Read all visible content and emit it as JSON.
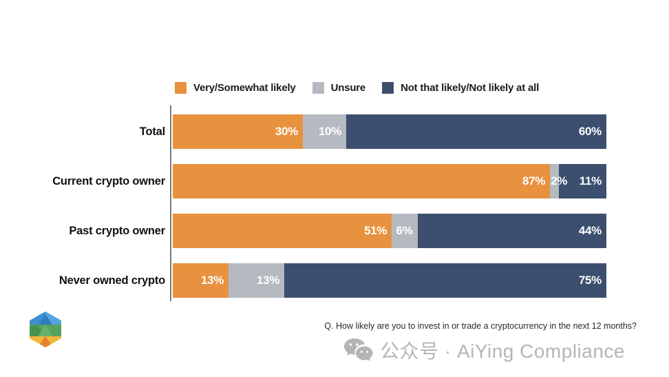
{
  "chart_data": {
    "type": "bar",
    "variant": "horizontal-stacked",
    "categories": [
      "Total",
      "Current crypto owner",
      "Past crypto owner",
      "Never owned crypto"
    ],
    "series": [
      {
        "name": "Very/Somewhat likely",
        "color": "#E8913E",
        "values": [
          30,
          87,
          51,
          13
        ]
      },
      {
        "name": "Unsure",
        "color": "#B5B9C0",
        "values": [
          10,
          2,
          6,
          13
        ]
      },
      {
        "name": "Not that likely/Not likely at all",
        "color": "#3C4F6E",
        "values": [
          60,
          11,
          44,
          75
        ]
      }
    ],
    "value_suffix": "%",
    "xlim": [
      0,
      100
    ],
    "grid": false,
    "legend_position": "top",
    "axis_line_color": "#7a7a7a",
    "value_label_color": "#ffffff"
  },
  "footer": {
    "question": "Q. How likely are you to invest in or trade a cryptocurrency in the next 12 months?",
    "watermark_text": "公众号 · AiYing Compliance"
  },
  "branding": {
    "watermark_icon": "wechat-icon",
    "logo_icon": "aiying-cube-logo",
    "watermark_color": "#b5b5b5",
    "logo_colors": {
      "blue": "#3E8ED0",
      "green": "#56A15B",
      "orange": "#E2832F",
      "yellow": "#F2B63C"
    }
  }
}
